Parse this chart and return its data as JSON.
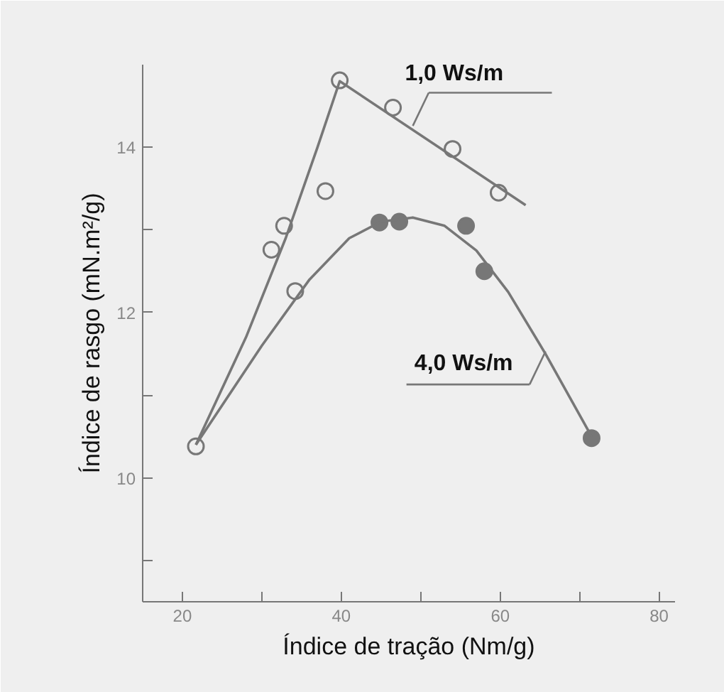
{
  "chart_data": {
    "type": "scatter",
    "xlabel": "Índice de tração (Nm/g)",
    "ylabel": "Índice de rasgo (mN.m²/g)",
    "xlim": [
      15,
      82
    ],
    "ylim": [
      8.5,
      15
    ],
    "xticks": [
      20,
      {
        "value": 30,
        "label": null
      },
      40,
      {
        "value": 50,
        "label": null
      },
      60,
      {
        "value": 70,
        "label": null
      },
      80
    ],
    "yticks": [
      {
        "value": 9,
        "label": null
      },
      10,
      {
        "value": 11,
        "label": null
      },
      12,
      {
        "value": 13,
        "label": null
      },
      14
    ],
    "grid": false,
    "series": [
      {
        "marker": "circle",
        "color": "#777777",
        "x": [
          21.7,
          31.2,
          32.8,
          34.2,
          38,
          39.8,
          46.5,
          54,
          59.8
        ],
        "values": [
          10.38,
          12.76,
          13.05,
          12.26,
          13.47,
          14.81,
          14.48,
          13.98,
          13.45
        ]
      },
      {
        "marker": "circle",
        "color": "#777777",
        "x": [
          44.8,
          47.3,
          55.7,
          58,
          71.5
        ],
        "values": [
          13.09,
          13.1,
          13.05,
          12.5,
          10.48
        ]
      },
      {
        "type": "line",
        "marker": "none",
        "color": "#777777",
        "x": [
          21.7,
          28,
          33,
          37,
          39.8,
          63.2
        ],
        "values": [
          10.4,
          11.7,
          12.9,
          14.0,
          14.8,
          13.3
        ]
      },
      {
        "type": "line",
        "marker": "none",
        "color": "#777777",
        "x": [
          21.7,
          30,
          36,
          41,
          45,
          49,
          53,
          57,
          61,
          65.7,
          71.5
        ],
        "values": [
          10.4,
          11.6,
          12.4,
          12.9,
          13.1,
          13.15,
          13.05,
          12.75,
          12.25,
          11.5,
          10.5
        ]
      }
    ],
    "annotations": [
      {
        "text": "1,0 Ws/m",
        "x": 49,
        "y": 14.26
      },
      {
        "text": "4,0 Ws/m",
        "x": 65.7,
        "y": 11.53
      }
    ]
  }
}
